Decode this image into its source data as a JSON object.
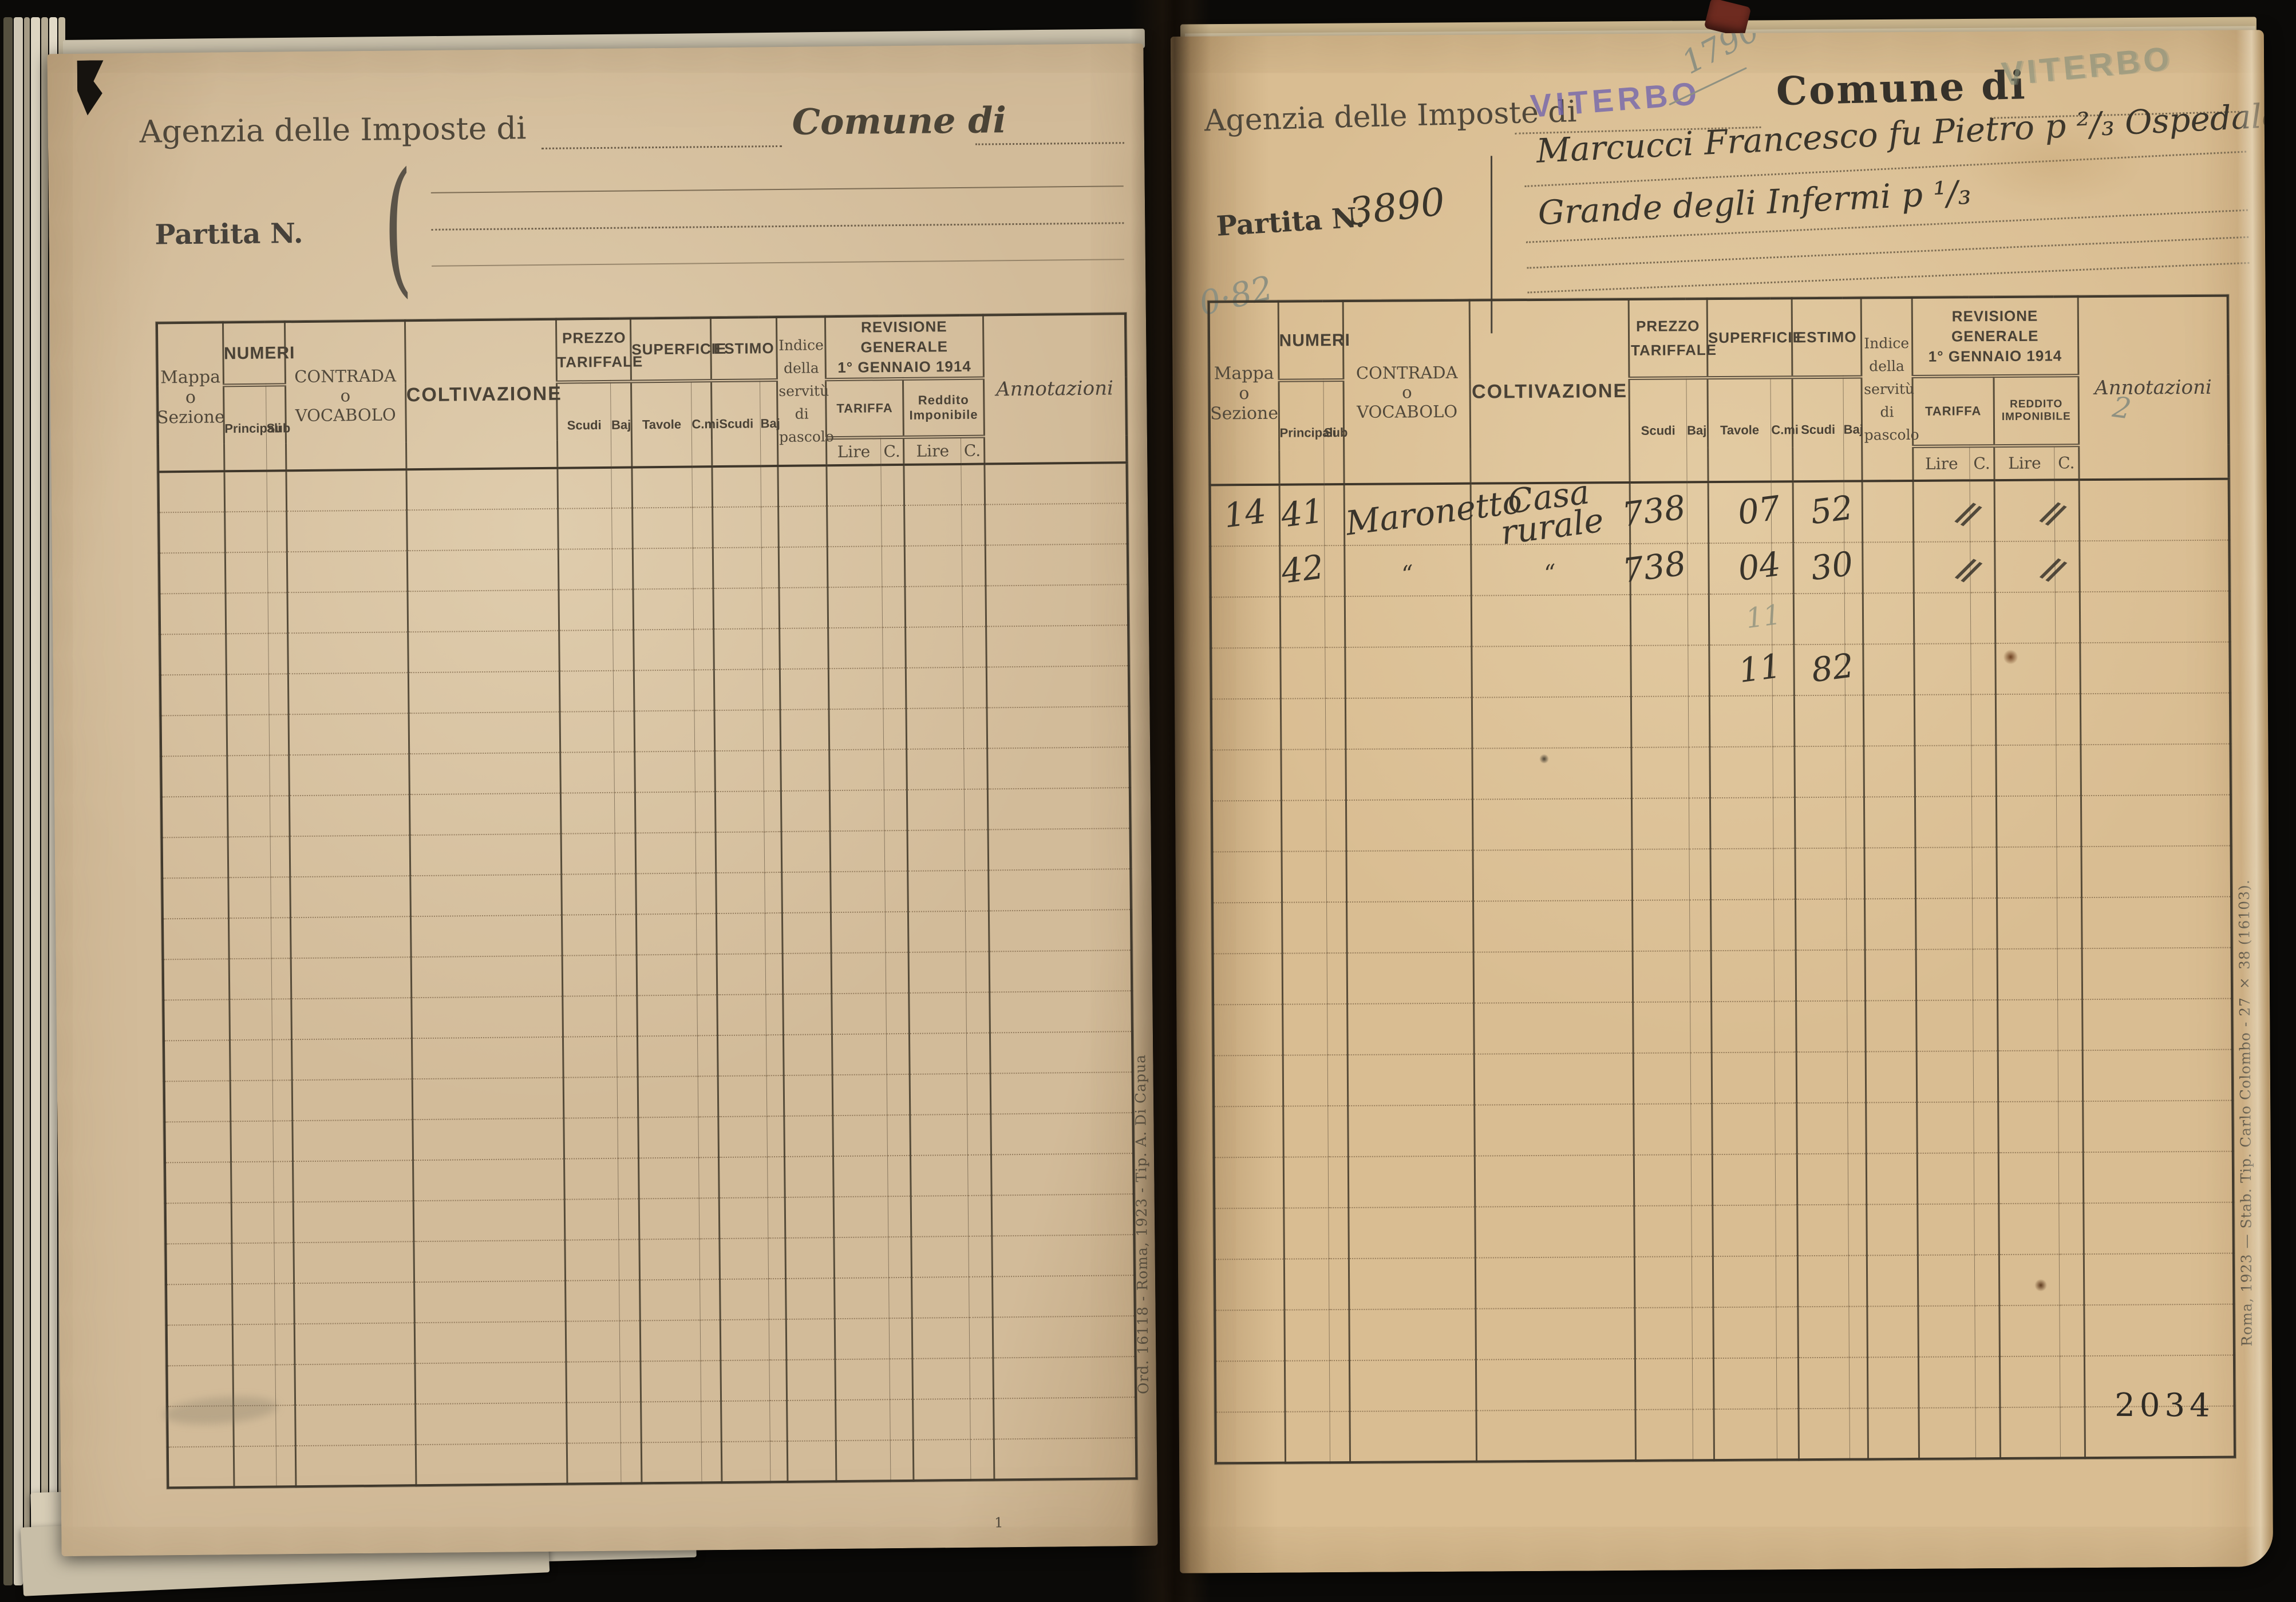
{
  "colors": {
    "background": "#0b0a08",
    "paper_left": "#d2bb99",
    "paper_right": "#d9bd92",
    "print_ink": "#4f473a",
    "handwriting_ink": "#3a352b",
    "pencil": "#8f9181",
    "stamp_purple": "#7466ad",
    "stamp_green": "#879076"
  },
  "table_header": {
    "mappa_line1": "Mappa",
    "o": "o",
    "mappa_line3": "Sezione",
    "numeri": "NUMERI",
    "principali": "Principali",
    "sub": "Sub",
    "contrada_line1": "CONTRADA",
    "contrada_line3": "VOCABOLO",
    "coltivazione": "COLTIVAZIONE",
    "prezzo": "PREZZO TARIFFALE",
    "superficie": "SUPERFICIE",
    "estimo": "ESTIMO",
    "indice": "Indice della servitù di pascolo",
    "revisione_line1": "REVISIONE GENERALE",
    "revisione_line2": "1° GENNAIO 1914",
    "tariffa": "TARIFFA",
    "reddito": "Reddito Imponibile",
    "reddito_caps": "REDDITO IMPONIBILE",
    "scudi": "Scudi",
    "baj": "Baj",
    "tavole": "Tavole",
    "cmi": "C.mi",
    "lire": "Lire",
    "c": "C.",
    "annotazioni": "Annotazioni"
  },
  "left_page": {
    "agenzia_label": "Agenzia delle Imposte di",
    "comune_label": "Comune di",
    "partita_label": "Partita N.",
    "imprint": "Ord. 16118 - Roma, 1923 - Tip. A. Di Capua",
    "footnote_mark": "1",
    "blank_row_count": 25
  },
  "right_page": {
    "agenzia_label": "Agenzia delle Imposte di",
    "agenzia_stamp": "VITERBO",
    "pencil_number": "1790",
    "comune_label": "Comune di",
    "comune_stamp": "VITERBO",
    "partita_label": "Partita N.",
    "partita_number": "3890",
    "pencil_value": "0·82",
    "owner_line1": "Marcucci Francesco fu Pietro p ²/₃ Ospedale",
    "owner_line2": "Grande degli Infermi p ¹/₃",
    "annotation_pencil": "2",
    "page_number_stamp": "2034",
    "imprint": "Roma, 1923 — Stab. Tip. Carlo Colombo - 27 × 38 (16103).",
    "row_count": 19,
    "rows": [
      {
        "mappa": "14",
        "principali": "41",
        "contrada": "Maronetto",
        "coltivazione": "Casa rurale",
        "prezzo_scudi": "738",
        "sup_tavole": "07",
        "estimo_scudi": "52",
        "tariffa_lire": "//",
        "reddito_lire": "//"
      },
      {
        "principali": "42",
        "contrada": "“",
        "coltivazione": "“",
        "prezzo_scudi": "738",
        "sup_tavole": "04",
        "estimo_scudi": "30",
        "tariffa_lire": "//",
        "reddito_lire": "//"
      },
      {
        "sup_tavole": "11",
        "_pencil": true
      },
      {
        "sup_tavole": "11",
        "estimo_scudi": "82"
      }
    ]
  }
}
